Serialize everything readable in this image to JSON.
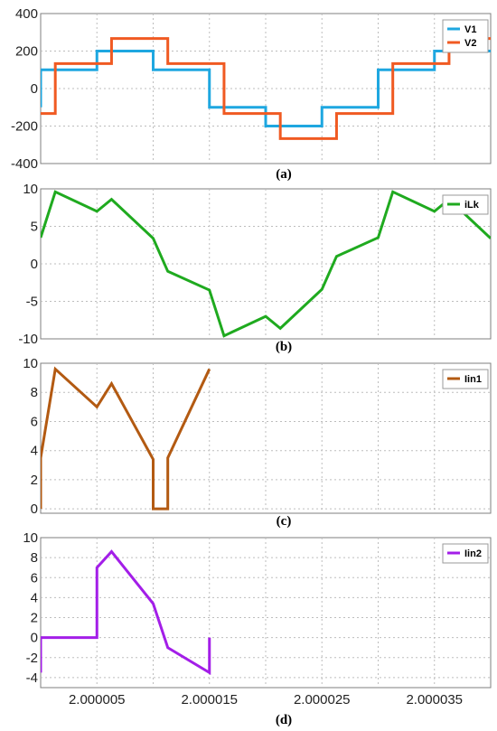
{
  "chart_data": [
    {
      "type": "line",
      "caption": "(a)",
      "ylim": [
        -400,
        400
      ],
      "yticks": [
        400,
        200,
        0,
        -200,
        -400
      ],
      "grid": true,
      "legend_position": "top-right",
      "series": [
        {
          "name": "V1",
          "color": "#1ea7e0",
          "x": [
            2.0,
            2.0,
            2.0000004,
            2.0000004,
            2.000005,
            2.000005,
            2.00001,
            2.00001,
            2.000015,
            2.000015,
            2.00002,
            2.00002,
            2.000025,
            2.000025,
            2.00003,
            2.00003,
            2.000035,
            2.000035,
            2.00004
          ],
          "y": [
            -100,
            100,
            100,
            100,
            100,
            200,
            200,
            100,
            100,
            -100,
            -100,
            -200,
            -200,
            -100,
            -100,
            100,
            100,
            200,
            200
          ]
        },
        {
          "name": "V2",
          "color": "#f05a22",
          "x": [
            2.0,
            2.0000013,
            2.0000013,
            2.0000063,
            2.0000063,
            2.0000113,
            2.0000113,
            2.0000163,
            2.0000163,
            2.0000213,
            2.0000213,
            2.0000263,
            2.0000263,
            2.0000313,
            2.0000313,
            2.0000363,
            2.0000363,
            2.00004
          ],
          "y": [
            -133,
            -133,
            133,
            133,
            267,
            267,
            133,
            133,
            -133,
            -133,
            -267,
            -267,
            -133,
            -133,
            133,
            133,
            267,
            267
          ]
        }
      ]
    },
    {
      "type": "line",
      "caption": "(b)",
      "ylim": [
        -10,
        10
      ],
      "yticks": [
        10,
        5,
        0,
        -5,
        -10
      ],
      "grid": true,
      "legend_position": "top-right",
      "series": [
        {
          "name": "iLk",
          "color": "#1faa1f",
          "x": [
            2.0,
            2.0000013,
            2.000005,
            2.0000063,
            2.00001,
            2.0000113,
            2.000015,
            2.0000163,
            2.00002,
            2.0000213,
            2.000025,
            2.0000263,
            2.00003,
            2.0000313,
            2.000035,
            2.0000363,
            2.00004
          ],
          "y": [
            3.5,
            9.6,
            7.0,
            8.6,
            3.4,
            -1.0,
            -3.5,
            -9.6,
            -7.0,
            -8.6,
            -3.4,
            1.0,
            3.5,
            9.6,
            7.0,
            8.6,
            3.4
          ]
        }
      ]
    },
    {
      "type": "line",
      "caption": "(c)",
      "ylim": [
        -0.3,
        10
      ],
      "yticks": [
        10,
        8,
        6,
        4,
        2,
        0
      ],
      "grid": true,
      "legend_position": "top-right",
      "series": [
        {
          "name": "Iin1",
          "color": "#b35a12",
          "x": [
            2.0,
            2.0,
            2.0000013,
            2.000005,
            2.0000063,
            2.00001,
            2.00001,
            2.0000113,
            2.0000113,
            2.000015
          ],
          "y": [
            0,
            3.5,
            9.6,
            7.0,
            8.6,
            3.4,
            0,
            0,
            3.5,
            9.6
          ]
        }
      ]
    },
    {
      "type": "line",
      "caption": "(d)",
      "ylim": [
        -5,
        10
      ],
      "yticks": [
        10,
        8,
        6,
        4,
        2,
        0,
        -2,
        -4
      ],
      "xlabel_ticks": [
        "2.000005",
        "2.000015",
        "2.000025",
        "2.000035"
      ],
      "grid": true,
      "legend_position": "top-right",
      "series": [
        {
          "name": "Iin2",
          "color": "#a31ee8",
          "x": [
            2.0,
            2.0,
            2.000005,
            2.000005,
            2.0000063,
            2.00001,
            2.0000113,
            2.000015,
            2.000015
          ],
          "y": [
            -3.5,
            0,
            0,
            7.0,
            8.6,
            3.4,
            -1.0,
            -3.5,
            0
          ]
        }
      ]
    }
  ]
}
